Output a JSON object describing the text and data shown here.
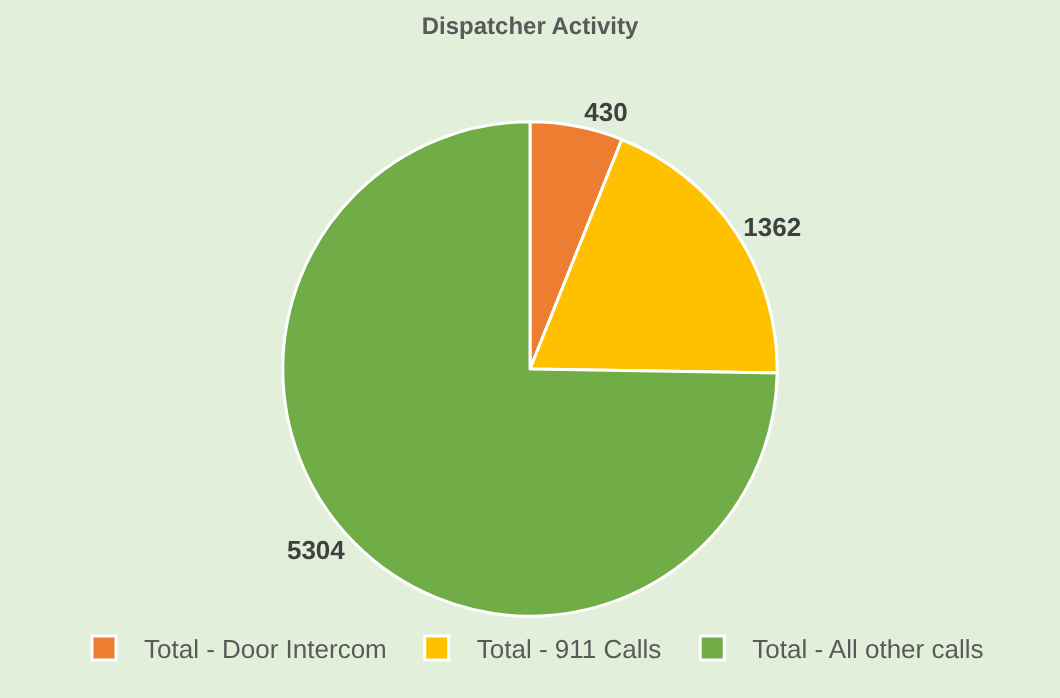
{
  "chart_data": {
    "type": "pie",
    "title": "Dispatcher Activity",
    "categories": [
      "Total - Door Intercom",
      "Total - 911 Calls",
      "Total - All other calls"
    ],
    "values": [
      430,
      1362,
      5304
    ],
    "colors": [
      "#ed7d31",
      "#ffc000",
      "#70ad47"
    ],
    "data_labels": true,
    "legend": "bottom"
  }
}
